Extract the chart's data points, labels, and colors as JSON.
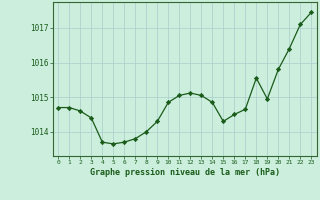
{
  "x": [
    0,
    1,
    2,
    3,
    4,
    5,
    6,
    7,
    8,
    9,
    10,
    11,
    12,
    13,
    14,
    15,
    16,
    17,
    18,
    19,
    20,
    21,
    22,
    23
  ],
  "y": [
    1014.7,
    1014.7,
    1014.6,
    1014.4,
    1013.7,
    1013.65,
    1013.7,
    1013.8,
    1014.0,
    1014.3,
    1014.85,
    1015.05,
    1015.12,
    1015.05,
    1014.85,
    1014.3,
    1014.5,
    1014.65,
    1015.55,
    1014.95,
    1015.8,
    1016.4,
    1017.1,
    1017.45
  ],
  "line_color": "#1a5c1a",
  "marker": "D",
  "marker_size": 2.2,
  "bg_color": "#cceedd",
  "grid_color": "#aacccc",
  "xlabel": "Graphe pression niveau de la mer (hPa)",
  "xlabel_color": "#1a5c1a",
  "tick_color": "#1a5c1a",
  "ylabel_ticks": [
    1014,
    1015,
    1016,
    1017
  ],
  "ylim": [
    1013.3,
    1017.75
  ],
  "xlim": [
    -0.5,
    23.5
  ],
  "spine_color": "#336633",
  "figure_bg": "#cceedd"
}
